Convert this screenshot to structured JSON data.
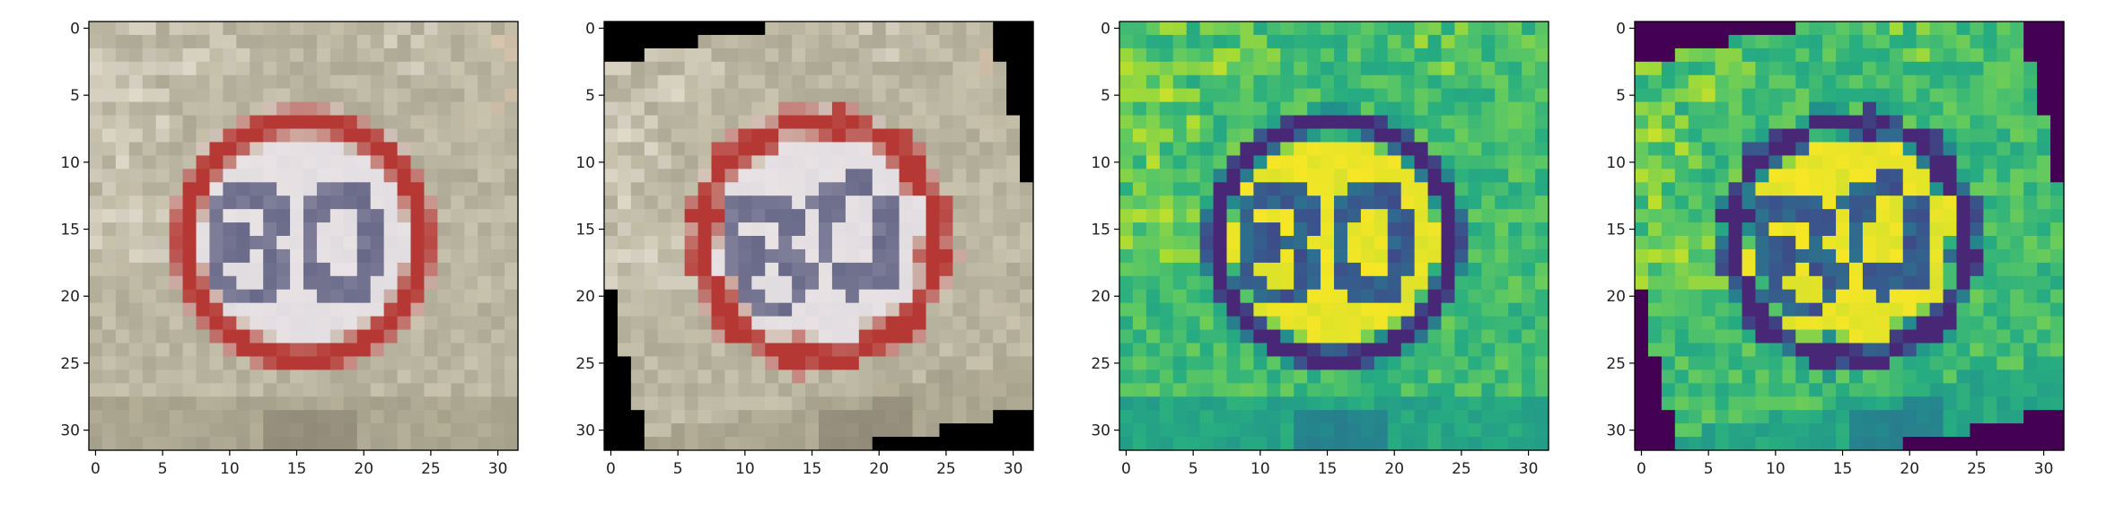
{
  "figure": {
    "panels": [
      {
        "name": "original-rgb",
        "colormap": "rgb",
        "rotation_deg": 0
      },
      {
        "name": "rotated-rgb",
        "colormap": "rgb",
        "rotation_deg": -12
      },
      {
        "name": "original-grayscale",
        "colormap": "viridis",
        "rotation_deg": 0
      },
      {
        "name": "rotated-grayscale",
        "colormap": "viridis",
        "rotation_deg": -12
      }
    ],
    "image_size": 32,
    "xlim": [
      -0.5,
      31.5
    ],
    "ylim": [
      31.5,
      -0.5
    ],
    "xticks": [
      "0",
      "5",
      "10",
      "15",
      "20",
      "25",
      "30"
    ],
    "yticks": [
      "0",
      "5",
      "10",
      "15",
      "20",
      "25",
      "30"
    ],
    "sign_text": "80",
    "colors": {
      "sign_red": "#b83a38",
      "sign_white": "#e8e4e4",
      "digits": "#6a6a88",
      "background": "#b0ab95",
      "viridis_dark": "#440154",
      "viridis_mid": "#21918c",
      "viridis_bright": "#fde725"
    }
  }
}
